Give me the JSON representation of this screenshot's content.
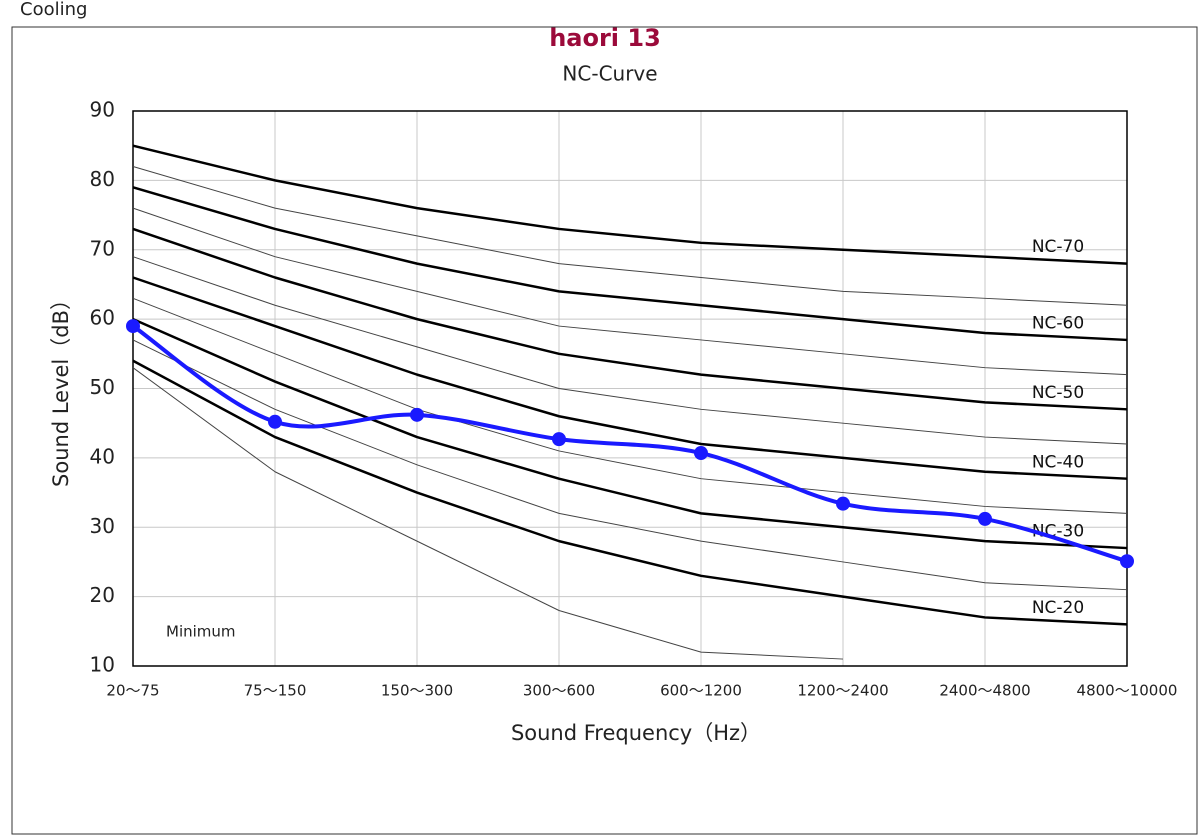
{
  "chart_data": {
    "type": "line",
    "corner_label": "Cooling",
    "title": "haori 13",
    "subtitle": "NC-Curve",
    "x_label": "Sound Frequency（Hz）",
    "y_label": "Sound Level（dB）",
    "annotation": "Minimum",
    "categories": [
      "20～75",
      "75～150",
      "150～300",
      "300～600",
      "600～1200",
      "1200～2400",
      "2400～4800",
      "4800～10000"
    ],
    "ylim": [
      10,
      90
    ],
    "yticks": [
      10,
      20,
      30,
      40,
      50,
      60,
      70,
      80,
      90
    ],
    "grid": true,
    "series": [
      {
        "name": "NC-70",
        "color": "#000000",
        "values": [
          85,
          80,
          76,
          73,
          71,
          70,
          69,
          68
        ]
      },
      {
        "color": "#444444",
        "values": [
          82,
          76,
          72,
          68,
          66,
          64,
          63,
          62
        ]
      },
      {
        "name": "NC-60",
        "color": "#000000",
        "values": [
          79,
          73,
          68,
          64,
          62,
          60,
          58,
          57
        ]
      },
      {
        "color": "#444444",
        "values": [
          76,
          69,
          64,
          59,
          57,
          55,
          53,
          52
        ]
      },
      {
        "name": "NC-50",
        "color": "#000000",
        "values": [
          73,
          66,
          60,
          55,
          52,
          50,
          48,
          47
        ]
      },
      {
        "color": "#444444",
        "values": [
          69,
          62,
          56,
          50,
          47,
          45,
          43,
          42
        ]
      },
      {
        "name": "NC-40",
        "color": "#000000",
        "values": [
          66,
          59,
          52,
          46,
          42,
          40,
          38,
          37
        ]
      },
      {
        "color": "#444444",
        "values": [
          63,
          55,
          47,
          41,
          37,
          35,
          33,
          32
        ]
      },
      {
        "name": "NC-30",
        "color": "#000000",
        "values": [
          60,
          51,
          43,
          37,
          32,
          30,
          28,
          27
        ]
      },
      {
        "color": "#444444",
        "values": [
          57,
          47,
          39,
          32,
          28,
          25,
          22,
          21
        ]
      },
      {
        "name": "NC-20",
        "color": "#000000",
        "values": [
          54,
          43,
          35,
          28,
          23,
          20,
          17,
          16
        ]
      },
      {
        "color": "#444444",
        "values": [
          53,
          38,
          28,
          18,
          12,
          11,
          null,
          null
        ]
      },
      {
        "color": "#1a1aff",
        "values": [
          59,
          45.2,
          46.2,
          42.7,
          40.7,
          33.4,
          31.2,
          25.1
        ]
      }
    ]
  }
}
